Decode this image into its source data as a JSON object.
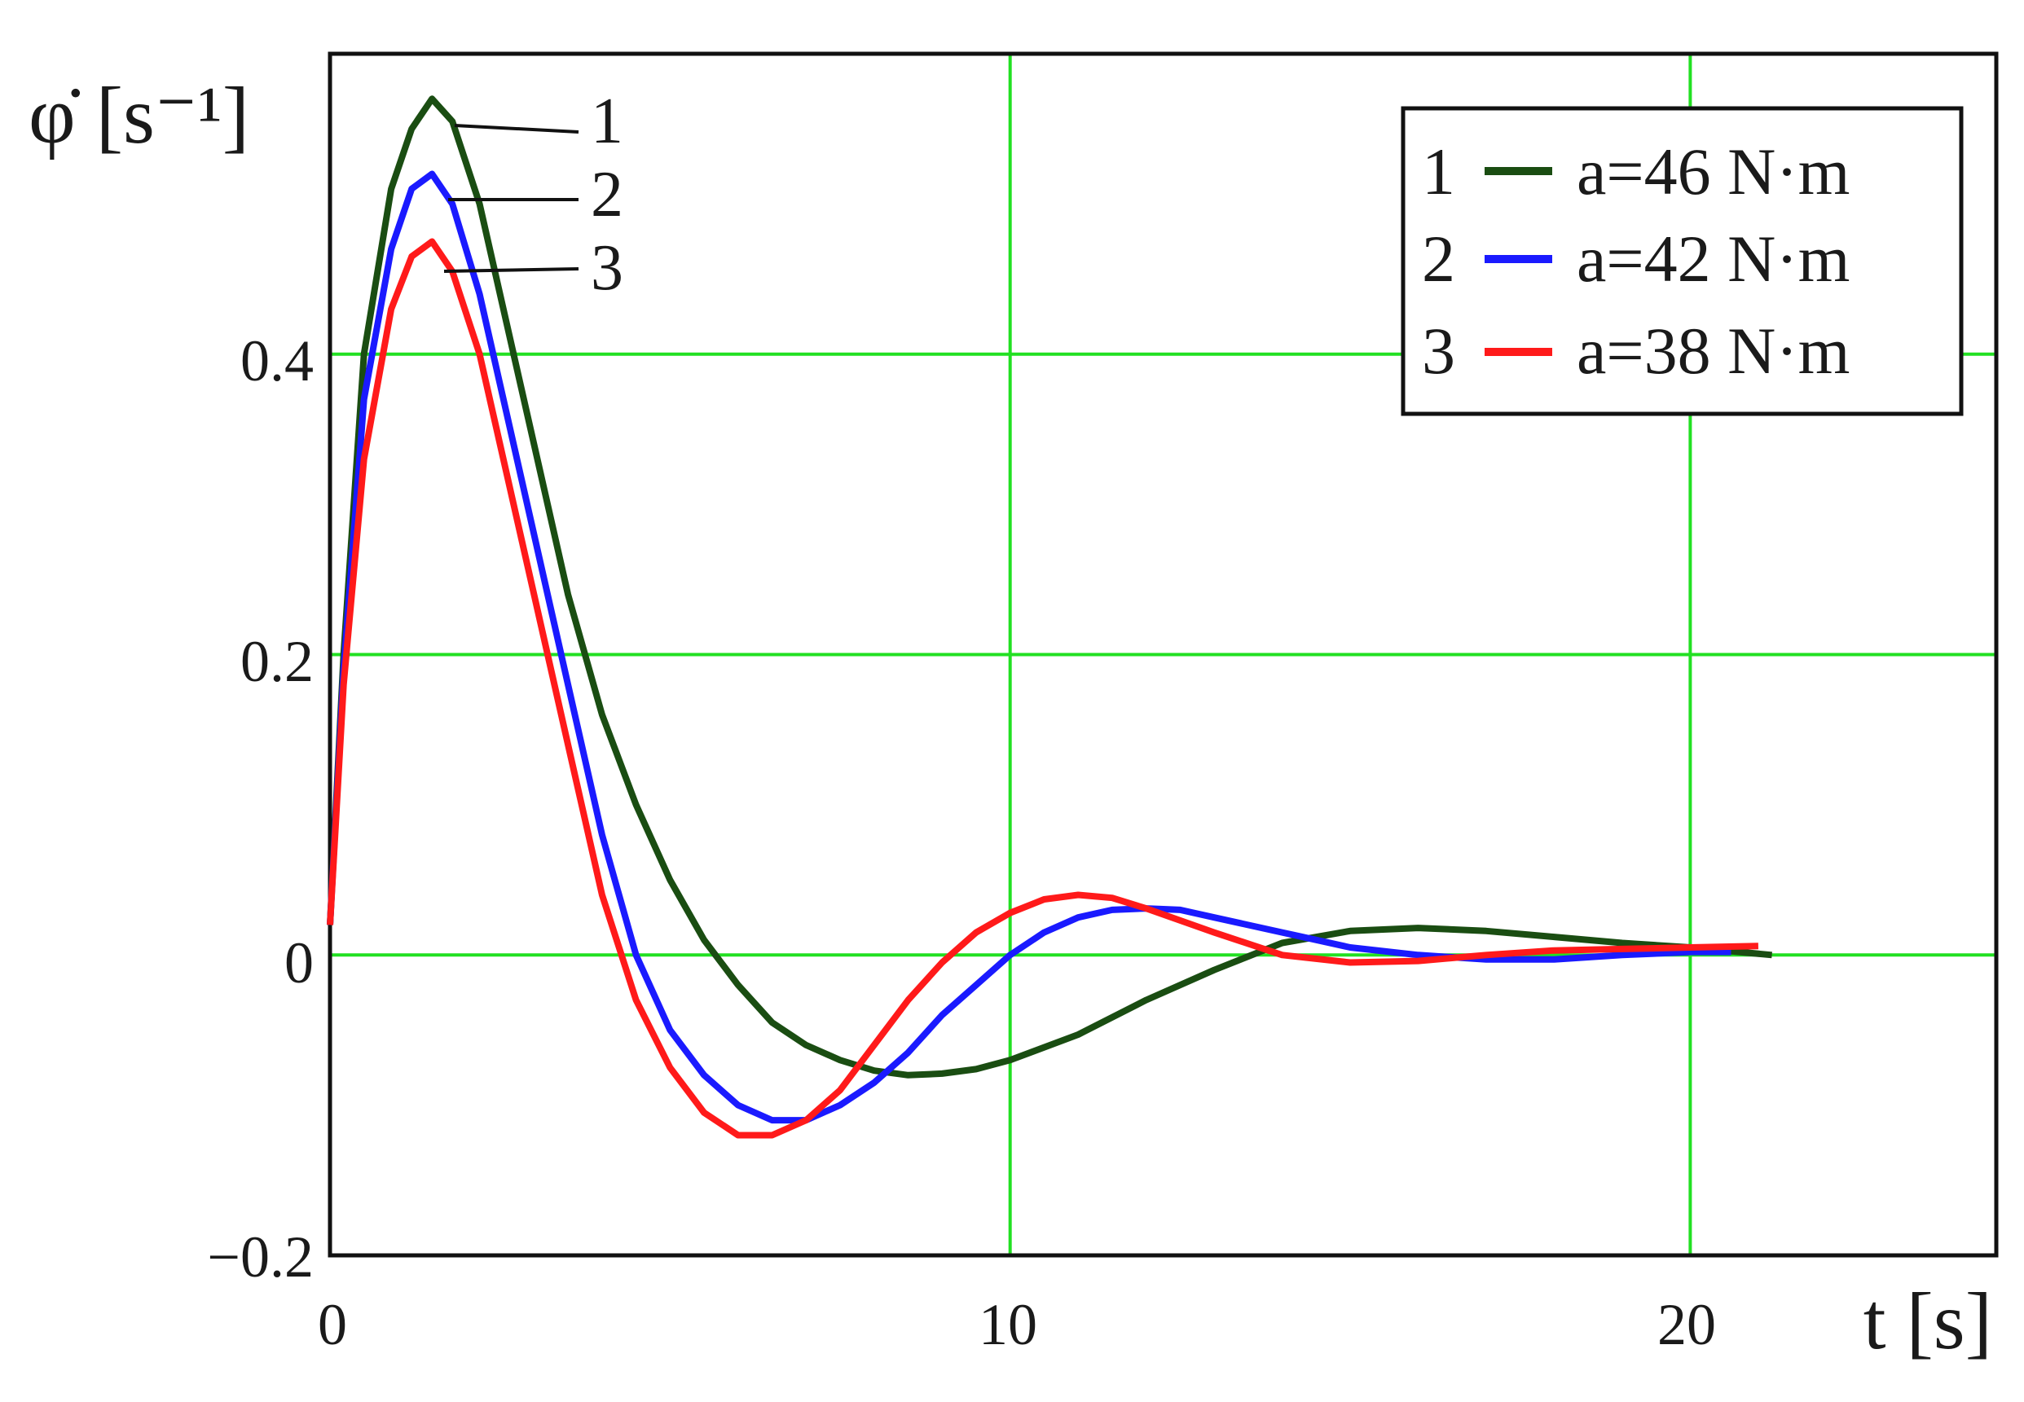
{
  "chart_data": {
    "type": "line",
    "xlabel": "t [s]",
    "ylabel": "φ̇ [s⁻¹]",
    "xlim": [
      0,
      24.5
    ],
    "ylim": [
      -0.2,
      0.6
    ],
    "xticks": [
      "0",
      "10",
      "20"
    ],
    "yticks": [
      "−0.2",
      "0",
      "0.2",
      "0.4"
    ],
    "grid": true,
    "grid_color": "#22e022",
    "legend_position": "top-right",
    "series": [
      {
        "name": "a=46 N·m",
        "label": "1",
        "color": "#1a4d12",
        "points": [
          [
            0,
            0.02
          ],
          [
            0.2,
            0.2
          ],
          [
            0.5,
            0.4
          ],
          [
            0.9,
            0.51
          ],
          [
            1.2,
            0.55
          ],
          [
            1.5,
            0.57
          ],
          [
            1.8,
            0.555
          ],
          [
            2.2,
            0.5
          ],
          [
            2.6,
            0.42
          ],
          [
            3,
            0.34
          ],
          [
            3.5,
            0.24
          ],
          [
            4,
            0.16
          ],
          [
            4.5,
            0.1
          ],
          [
            5,
            0.05
          ],
          [
            5.5,
            0.01
          ],
          [
            6,
            -0.02
          ],
          [
            6.5,
            -0.045
          ],
          [
            7,
            -0.06
          ],
          [
            7.5,
            -0.07
          ],
          [
            8,
            -0.077
          ],
          [
            8.5,
            -0.08
          ],
          [
            9,
            -0.079
          ],
          [
            9.5,
            -0.076
          ],
          [
            10,
            -0.07
          ],
          [
            11,
            -0.053
          ],
          [
            12,
            -0.03
          ],
          [
            13,
            -0.01
          ],
          [
            14,
            0.008
          ],
          [
            15,
            0.016
          ],
          [
            16,
            0.018
          ],
          [
            17,
            0.016
          ],
          [
            18,
            0.012
          ],
          [
            19,
            0.008
          ],
          [
            20,
            0.005
          ],
          [
            21.2,
            0.0
          ]
        ]
      },
      {
        "name": "a=42 N·m",
        "label": "2",
        "color": "#1a1aff",
        "points": [
          [
            0,
            0.02
          ],
          [
            0.2,
            0.19
          ],
          [
            0.5,
            0.37
          ],
          [
            0.9,
            0.47
          ],
          [
            1.2,
            0.51
          ],
          [
            1.5,
            0.52
          ],
          [
            1.8,
            0.5
          ],
          [
            2.2,
            0.44
          ],
          [
            2.6,
            0.36
          ],
          [
            3,
            0.28
          ],
          [
            3.5,
            0.18
          ],
          [
            4,
            0.08
          ],
          [
            4.5,
            0.0
          ],
          [
            5,
            -0.05
          ],
          [
            5.5,
            -0.08
          ],
          [
            6,
            -0.1
          ],
          [
            6.5,
            -0.11
          ],
          [
            7,
            -0.11
          ],
          [
            7.5,
            -0.1
          ],
          [
            8,
            -0.085
          ],
          [
            8.5,
            -0.065
          ],
          [
            9,
            -0.04
          ],
          [
            9.5,
            -0.02
          ],
          [
            10,
            0.0
          ],
          [
            10.5,
            0.015
          ],
          [
            11,
            0.025
          ],
          [
            11.5,
            0.03
          ],
          [
            12,
            0.031
          ],
          [
            12.5,
            0.03
          ],
          [
            13,
            0.025
          ],
          [
            14,
            0.015
          ],
          [
            15,
            0.005
          ],
          [
            16,
            0.0
          ],
          [
            17,
            -0.003
          ],
          [
            18,
            -0.003
          ],
          [
            19,
            0.0
          ],
          [
            20,
            0.002
          ],
          [
            20.6,
            0.002
          ]
        ]
      },
      {
        "name": "a=38 N·m",
        "label": "3",
        "color": "#ff1a1a",
        "points": [
          [
            0,
            0.02
          ],
          [
            0.2,
            0.18
          ],
          [
            0.5,
            0.33
          ],
          [
            0.9,
            0.43
          ],
          [
            1.2,
            0.465
          ],
          [
            1.5,
            0.475
          ],
          [
            1.8,
            0.455
          ],
          [
            2.2,
            0.4
          ],
          [
            2.6,
            0.32
          ],
          [
            3,
            0.24
          ],
          [
            3.5,
            0.14
          ],
          [
            4,
            0.04
          ],
          [
            4.5,
            -0.03
          ],
          [
            5,
            -0.075
          ],
          [
            5.5,
            -0.105
          ],
          [
            6,
            -0.12
          ],
          [
            6.5,
            -0.12
          ],
          [
            7,
            -0.11
          ],
          [
            7.5,
            -0.09
          ],
          [
            8,
            -0.06
          ],
          [
            8.5,
            -0.03
          ],
          [
            9,
            -0.005
          ],
          [
            9.5,
            0.015
          ],
          [
            10,
            0.028
          ],
          [
            10.5,
            0.037
          ],
          [
            11,
            0.04
          ],
          [
            11.5,
            0.038
          ],
          [
            12,
            0.031
          ],
          [
            13,
            0.015
          ],
          [
            14,
            0.0
          ],
          [
            15,
            -0.005
          ],
          [
            16,
            -0.004
          ],
          [
            17,
            0.0
          ],
          [
            18,
            0.003
          ],
          [
            19,
            0.004
          ],
          [
            20,
            0.005
          ],
          [
            21,
            0.006
          ]
        ]
      }
    ]
  }
}
